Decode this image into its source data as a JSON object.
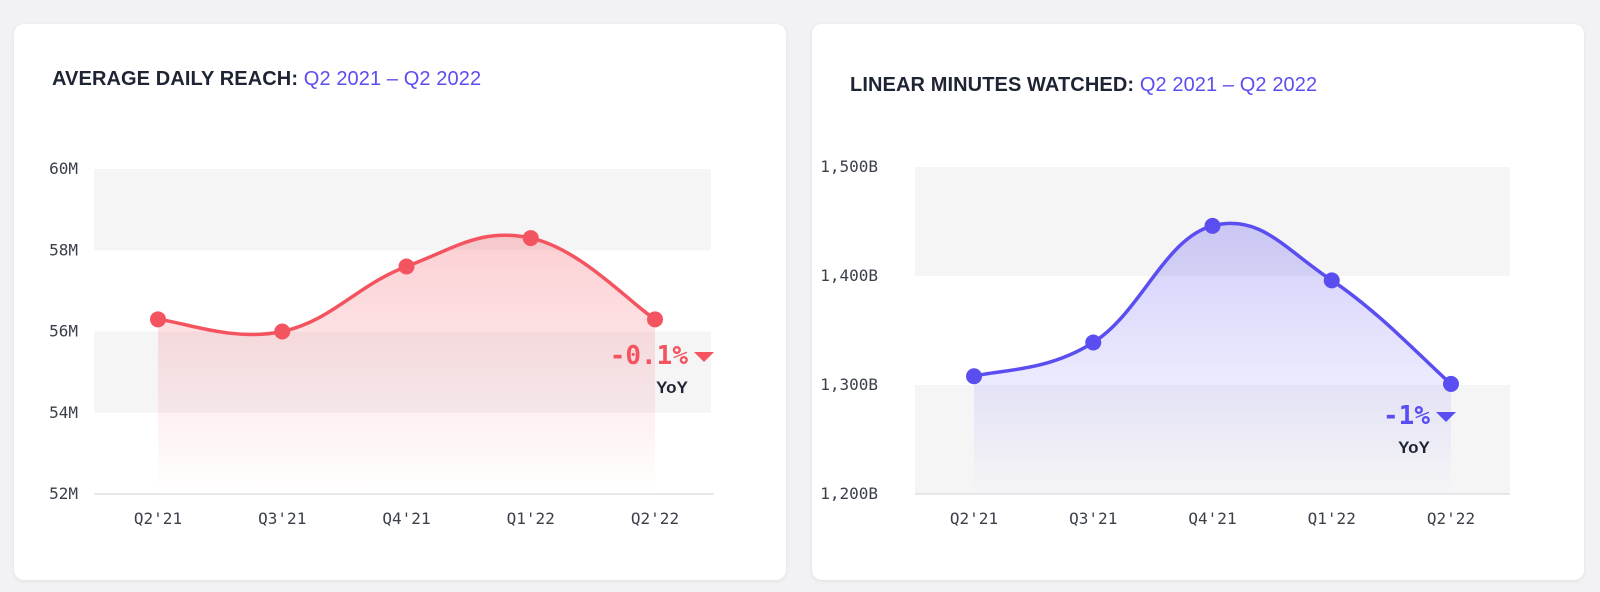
{
  "charts": [
    {
      "title": "AVERAGE DAILY REACH:",
      "period": "Q2 2021 – Q2 2022",
      "accent": "#f4545f",
      "yoy": {
        "value": "-0.1%",
        "label": "YoY",
        "direction": "down"
      }
    },
    {
      "title": "LINEAR MINUTES WATCHED:",
      "period": "Q2 2021 – Q2 2022",
      "accent": "#5b4ef0",
      "yoy": {
        "value": "-1%",
        "label": "YoY",
        "direction": "down"
      }
    }
  ],
  "chart_data": [
    {
      "type": "area",
      "title": "AVERAGE DAILY REACH: Q2 2021 – Q2 2022",
      "categories": [
        "Q2'21",
        "Q3'21",
        "Q4'21",
        "Q1'22",
        "Q2'22"
      ],
      "series": [
        {
          "values": [
            56.3,
            56.0,
            57.6,
            58.3,
            56.3
          ]
        }
      ],
      "ylim": [
        52,
        60
      ],
      "yticks": [
        52,
        54,
        56,
        58,
        60
      ],
      "ytick_labels": [
        "52M",
        "54M",
        "56M",
        "58M",
        "60M"
      ],
      "grid": "alternating bands",
      "color": "#f4545f"
    },
    {
      "type": "area",
      "title": "LINEAR MINUTES WATCHED: Q2 2021 – Q2 2022",
      "categories": [
        "Q2'21",
        "Q3'21",
        "Q4'21",
        "Q1'22",
        "Q2'22"
      ],
      "series": [
        {
          "values": [
            1308,
            1339,
            1446,
            1396,
            1301
          ]
        }
      ],
      "ylim": [
        1200,
        1500
      ],
      "yticks": [
        1200,
        1300,
        1400,
        1500
      ],
      "ytick_labels": [
        "1,200B",
        "1,300B",
        "1,400B",
        "1,500B"
      ],
      "grid": "alternating bands",
      "color": "#5b4ef0"
    }
  ]
}
